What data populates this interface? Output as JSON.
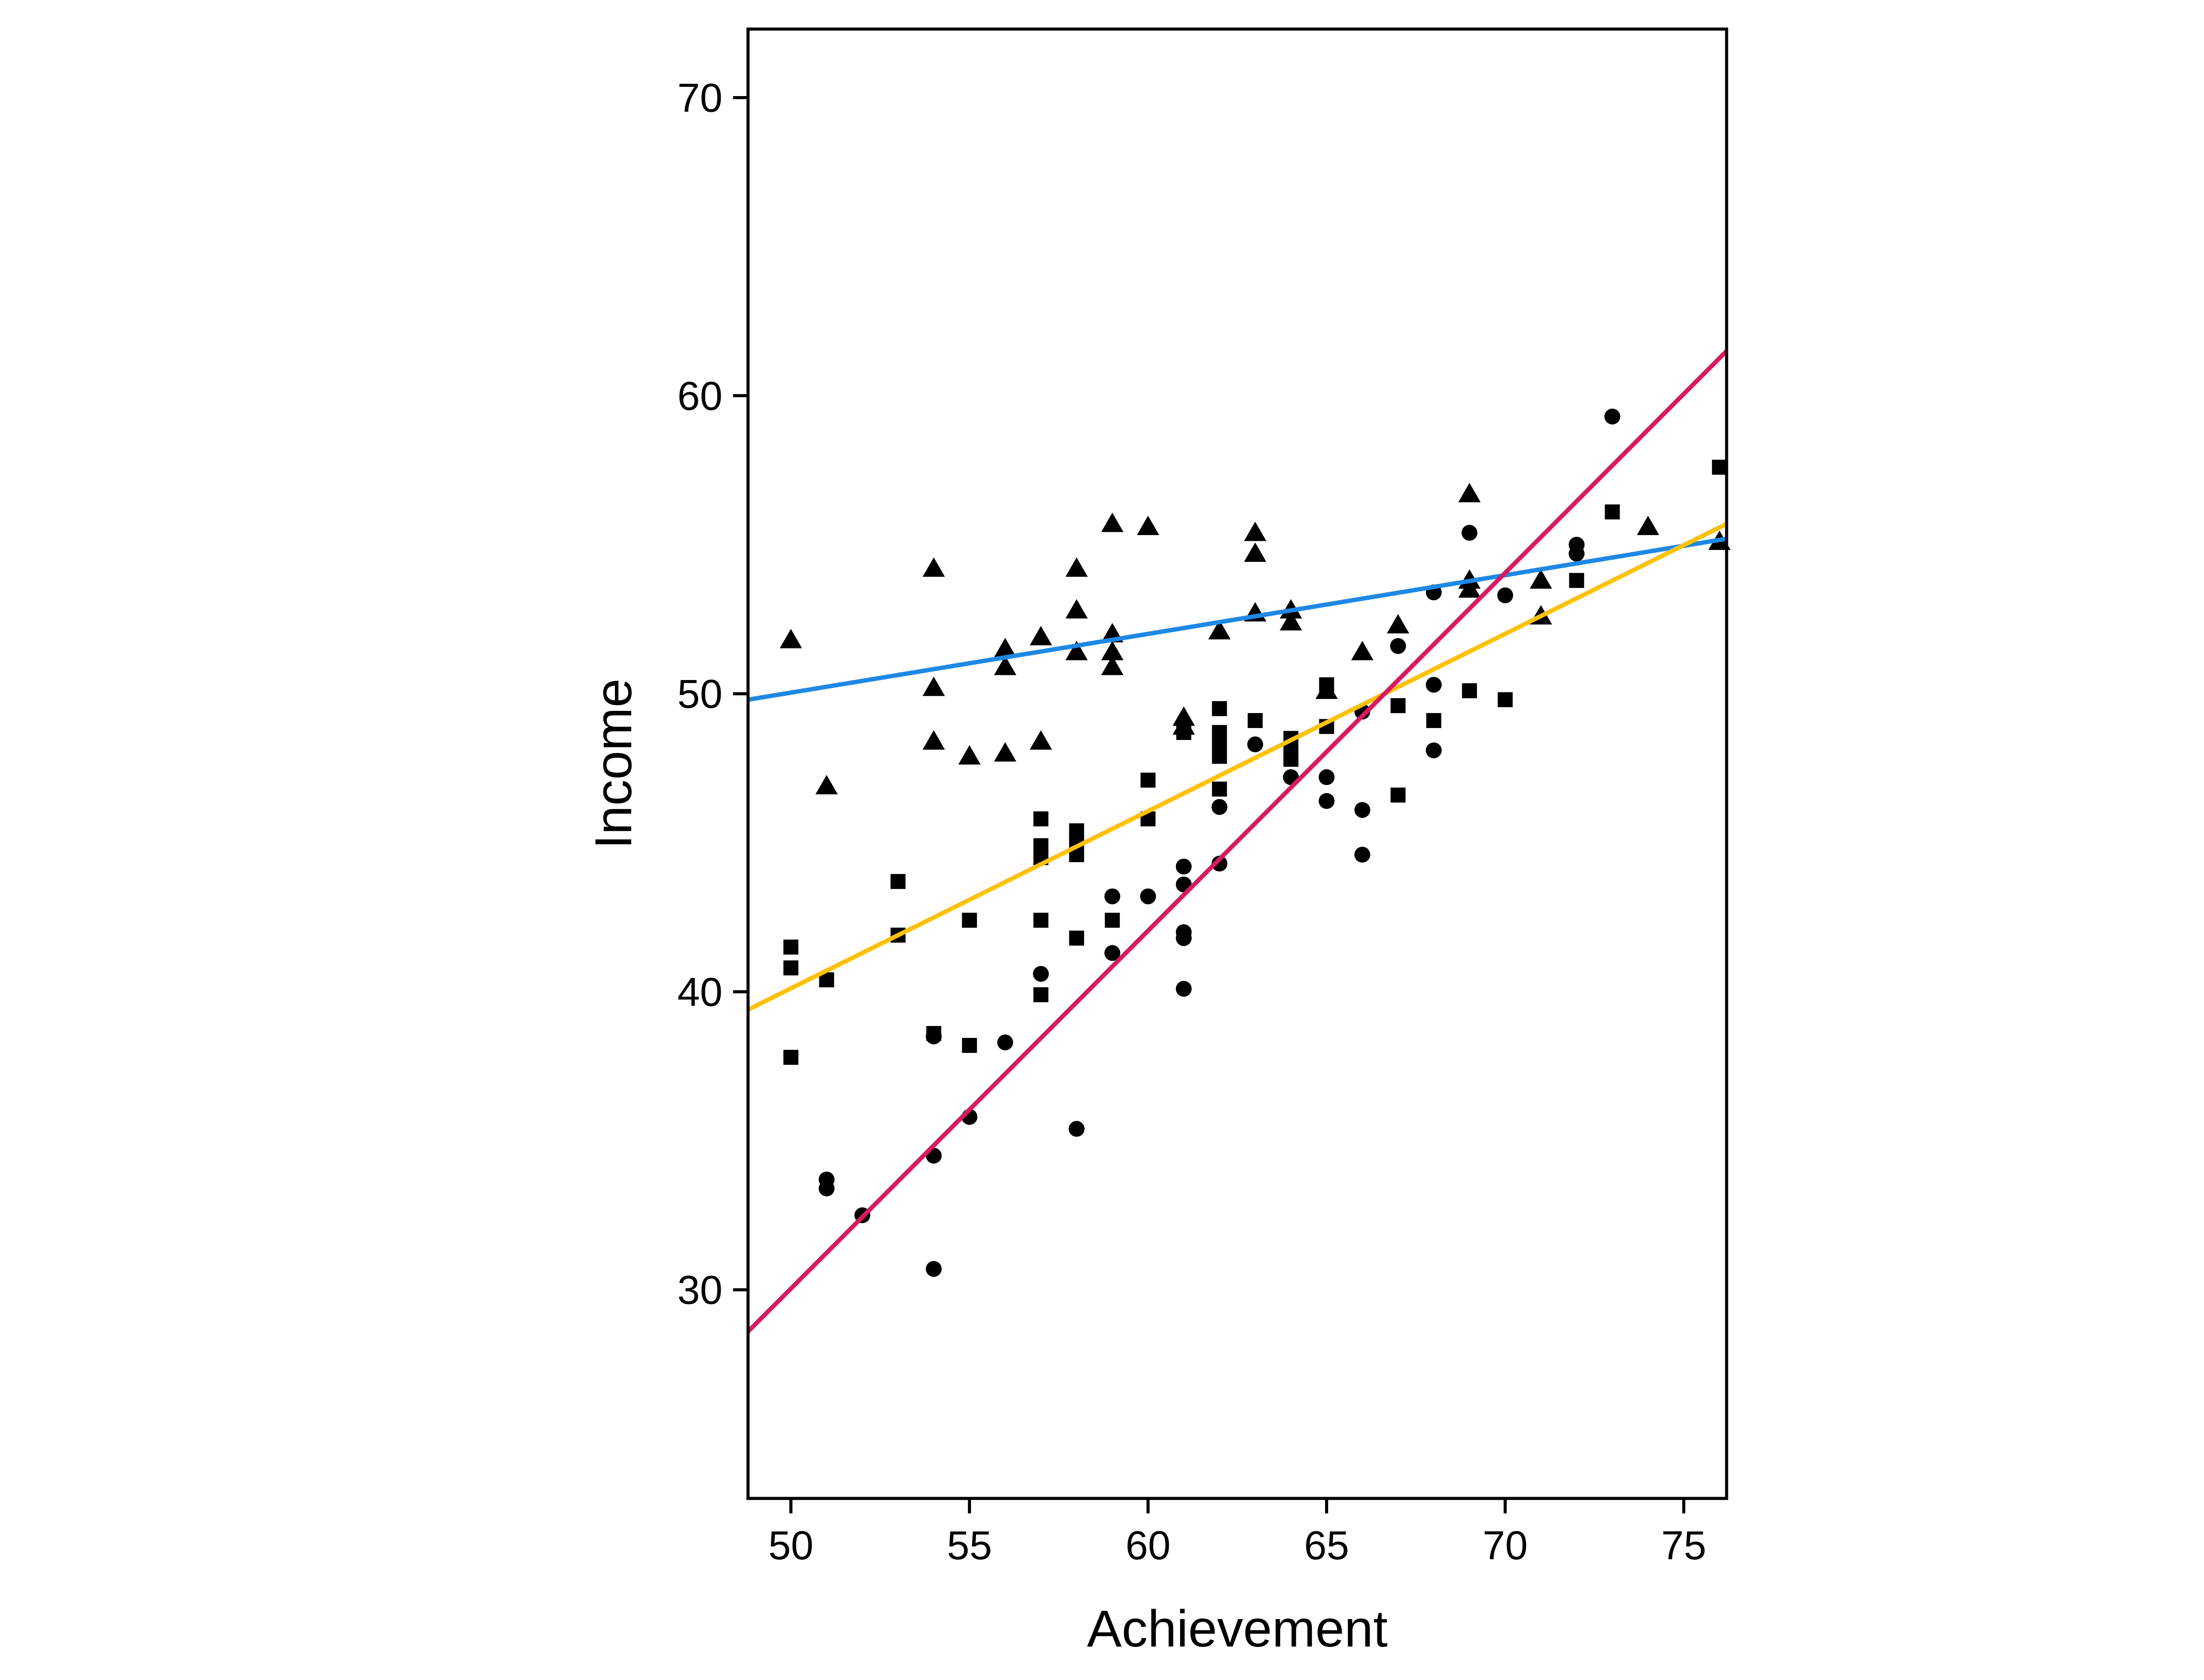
{
  "chart_data": {
    "type": "scatter",
    "title": "",
    "xlabel": "Achievement",
    "ylabel": "Income",
    "xlim": [
      48.8,
      76.2
    ],
    "ylim": [
      23,
      72.3
    ],
    "xticks": [
      50,
      55,
      60,
      65,
      70,
      75
    ],
    "yticks": [
      30,
      40,
      50,
      60,
      70
    ],
    "grid": false,
    "legend": "none",
    "series": [
      {
        "marker": "circle",
        "points": [
          [
            51,
            33.7
          ],
          [
            51,
            33.4
          ],
          [
            52,
            32.5
          ],
          [
            54,
            34.5
          ],
          [
            54,
            30.7
          ],
          [
            54,
            38.5
          ],
          [
            55,
            35.8
          ],
          [
            56,
            38.3
          ],
          [
            57,
            40.6
          ],
          [
            58,
            35.4
          ],
          [
            59,
            41.3
          ],
          [
            59,
            43.2
          ],
          [
            60,
            43.2
          ],
          [
            61,
            44.2
          ],
          [
            61,
            43.6
          ],
          [
            61,
            42.0
          ],
          [
            61,
            41.8
          ],
          [
            61,
            40.1
          ],
          [
            62,
            46.2
          ],
          [
            62,
            44.3
          ],
          [
            63,
            48.3
          ],
          [
            64,
            47.2
          ],
          [
            65,
            47.2
          ],
          [
            65,
            46.4
          ],
          [
            66,
            46.1
          ],
          [
            66,
            44.6
          ],
          [
            66,
            49.4
          ],
          [
            67,
            51.6
          ],
          [
            68,
            53.4
          ],
          [
            68,
            50.3
          ],
          [
            68,
            48.1
          ],
          [
            69,
            55.4
          ],
          [
            70,
            53.3
          ],
          [
            72,
            55.0
          ],
          [
            72,
            54.7
          ],
          [
            73,
            59.3
          ]
        ]
      },
      {
        "marker": "square",
        "points": [
          [
            50,
            41.5
          ],
          [
            50,
            40.8
          ],
          [
            50,
            37.8
          ],
          [
            51,
            40.4
          ],
          [
            53,
            43.7
          ],
          [
            53,
            41.9
          ],
          [
            54,
            38.6
          ],
          [
            55,
            42.4
          ],
          [
            55,
            38.2
          ],
          [
            57,
            45.8
          ],
          [
            57,
            44.9
          ],
          [
            57,
            44.5
          ],
          [
            57,
            42.4
          ],
          [
            57,
            39.9
          ],
          [
            58,
            45.4
          ],
          [
            58,
            45.0
          ],
          [
            58,
            44.6
          ],
          [
            58,
            41.8
          ],
          [
            59,
            42.4
          ],
          [
            60,
            47.1
          ],
          [
            60,
            45.8
          ],
          [
            61,
            48.7
          ],
          [
            62,
            49.5
          ],
          [
            62,
            48.7
          ],
          [
            62,
            48.3
          ],
          [
            62,
            47.9
          ],
          [
            62,
            46.8
          ],
          [
            63,
            49.1
          ],
          [
            64,
            48.5
          ],
          [
            64,
            48.0
          ],
          [
            64,
            47.8
          ],
          [
            65,
            50.3
          ],
          [
            65,
            48.9
          ],
          [
            67,
            49.6
          ],
          [
            67,
            46.6
          ],
          [
            68,
            49.1
          ],
          [
            69,
            50.1
          ],
          [
            70,
            49.8
          ],
          [
            72,
            53.8
          ],
          [
            73,
            56.1
          ],
          [
            76,
            57.6
          ]
        ]
      },
      {
        "marker": "triangle",
        "points": [
          [
            50,
            51.8
          ],
          [
            51,
            46.9
          ],
          [
            54,
            54.2
          ],
          [
            54,
            50.2
          ],
          [
            54,
            48.4
          ],
          [
            55,
            47.9
          ],
          [
            56,
            51.5
          ],
          [
            56,
            50.9
          ],
          [
            56,
            48.0
          ],
          [
            57,
            51.9
          ],
          [
            57,
            48.4
          ],
          [
            58,
            54.2
          ],
          [
            58,
            52.8
          ],
          [
            58,
            51.4
          ],
          [
            59,
            55.7
          ],
          [
            59,
            52.0
          ],
          [
            59,
            51.4
          ],
          [
            59,
            50.9
          ],
          [
            60,
            55.6
          ],
          [
            61,
            49.2
          ],
          [
            61,
            48.9
          ],
          [
            62,
            52.1
          ],
          [
            63,
            55.4
          ],
          [
            63,
            54.7
          ],
          [
            63,
            52.7
          ],
          [
            64,
            52.8
          ],
          [
            64,
            52.4
          ],
          [
            65,
            50.1
          ],
          [
            66,
            51.4
          ],
          [
            67,
            52.3
          ],
          [
            69,
            56.7
          ],
          [
            69,
            53.8
          ],
          [
            69,
            53.5
          ],
          [
            71,
            53.8
          ],
          [
            71,
            52.6
          ],
          [
            74,
            55.6
          ],
          [
            76,
            55.1
          ]
        ]
      }
    ],
    "lines": [
      {
        "color": "#1E88E5",
        "x": [
          48.8,
          76.2
        ],
        "y": [
          49.8,
          55.2
        ]
      },
      {
        "color": "#FFC107",
        "x": [
          48.8,
          76.2
        ],
        "y": [
          39.4,
          55.7
        ]
      },
      {
        "color": "#D81B60",
        "x": [
          48.8,
          76.2
        ],
        "y": [
          28.6,
          61.5
        ]
      }
    ]
  }
}
